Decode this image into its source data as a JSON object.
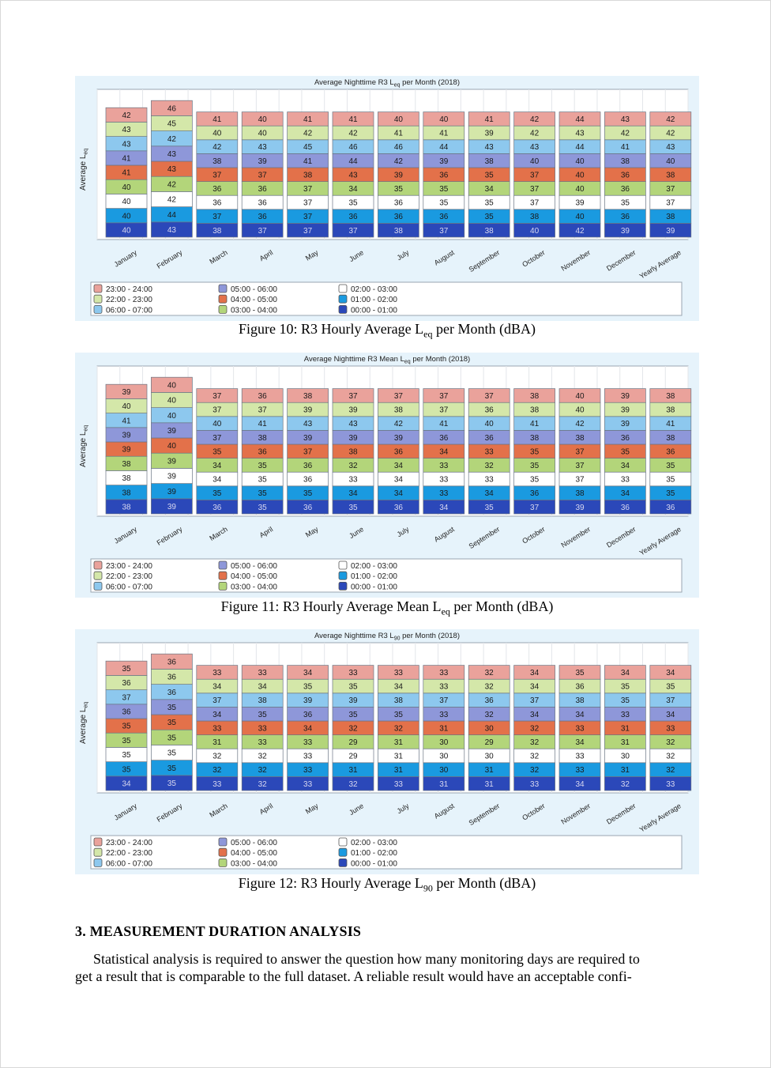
{
  "figures": [
    {
      "caption": {
        "prefix": "Figure 10: R3 Hourly Average L",
        "sub": "eq",
        "suffix": " per Month (dBA)"
      },
      "chart_data": {
        "type": "bar",
        "title": {
          "prefix": "Average Nighttime R3 L",
          "sub": "eq",
          "suffix": " per Month (2018)"
        },
        "ylabel": {
          "prefix": "Average L",
          "sub": "eq"
        },
        "categories": [
          "January",
          "February",
          "March",
          "April",
          "May",
          "June",
          "July",
          "August",
          "September",
          "October",
          "November",
          "December",
          "Yearly Average"
        ],
        "series": [
          {
            "name": "00:00 - 01:00",
            "values": [
              40,
              43,
              38,
              37,
              37,
              37,
              38,
              37,
              38,
              40,
              42,
              39,
              39
            ]
          },
          {
            "name": "01:00 - 02:00",
            "values": [
              40,
              44,
              37,
              36,
              37,
              36,
              36,
              36,
              35,
              38,
              40,
              36,
              38
            ]
          },
          {
            "name": "02:00 - 03:00",
            "values": [
              40,
              42,
              36,
              36,
              37,
              35,
              36,
              35,
              35,
              37,
              39,
              35,
              37
            ]
          },
          {
            "name": "03:00 - 04:00",
            "values": [
              40,
              42,
              36,
              36,
              37,
              34,
              35,
              35,
              34,
              37,
              40,
              36,
              37
            ]
          },
          {
            "name": "04:00 - 05:00",
            "values": [
              41,
              43,
              37,
              37,
              38,
              43,
              39,
              36,
              35,
              37,
              40,
              36,
              38
            ]
          },
          {
            "name": "05:00 - 06:00",
            "values": [
              41,
              43,
              38,
              39,
              41,
              44,
              42,
              39,
              38,
              40,
              40,
              38,
              40
            ]
          },
          {
            "name": "06:00 - 07:00",
            "values": [
              43,
              42,
              42,
              43,
              45,
              46,
              46,
              44,
              43,
              43,
              44,
              41,
              43
            ]
          },
          {
            "name": "22:00 - 23:00",
            "values": [
              43,
              45,
              40,
              40,
              42,
              42,
              41,
              41,
              39,
              42,
              43,
              42,
              42
            ]
          },
          {
            "name": "23:00 - 24:00",
            "values": [
              42,
              46,
              41,
              40,
              41,
              41,
              40,
              40,
              41,
              42,
              44,
              43,
              42
            ]
          }
        ],
        "tallest_index": 1
      }
    },
    {
      "caption": {
        "prefix": "Figure 11: R3 Hourly Average Mean L",
        "sub": "eq",
        "suffix": " per Month (dBA)"
      },
      "chart_data": {
        "type": "bar",
        "title": {
          "prefix": "Average Nighttime R3 Mean L",
          "sub": "eq",
          "suffix": " per Month (2018)"
        },
        "ylabel": {
          "prefix": "Average L",
          "sub": "eq"
        },
        "categories": [
          "January",
          "February",
          "March",
          "April",
          "May",
          "June",
          "July",
          "August",
          "September",
          "October",
          "November",
          "December",
          "Yearly Average"
        ],
        "series": [
          {
            "name": "00:00 - 01:00",
            "values": [
              38,
              39,
              36,
              35,
              36,
              35,
              36,
              34,
              35,
              37,
              39,
              36,
              36
            ]
          },
          {
            "name": "01:00 - 02:00",
            "values": [
              38,
              39,
              35,
              35,
              35,
              34,
              34,
              33,
              34,
              36,
              38,
              34,
              35
            ]
          },
          {
            "name": "02:00 - 03:00",
            "values": [
              38,
              39,
              34,
              35,
              36,
              33,
              34,
              33,
              33,
              35,
              37,
              33,
              35
            ]
          },
          {
            "name": "03:00 - 04:00",
            "values": [
              38,
              39,
              34,
              35,
              36,
              32,
              34,
              33,
              32,
              35,
              37,
              34,
              35
            ]
          },
          {
            "name": "04:00 - 05:00",
            "values": [
              39,
              40,
              35,
              36,
              37,
              38,
              36,
              34,
              33,
              35,
              37,
              35,
              36
            ]
          },
          {
            "name": "05:00 - 06:00",
            "values": [
              39,
              39,
              37,
              38,
              39,
              39,
              39,
              36,
              36,
              38,
              38,
              36,
              38
            ]
          },
          {
            "name": "06:00 - 07:00",
            "values": [
              41,
              40,
              40,
              41,
              43,
              43,
              42,
              41,
              40,
              41,
              42,
              39,
              41
            ]
          },
          {
            "name": "22:00 - 23:00",
            "values": [
              40,
              40,
              37,
              37,
              39,
              39,
              38,
              37,
              36,
              38,
              40,
              39,
              38
            ]
          },
          {
            "name": "23:00 - 24:00",
            "values": [
              39,
              40,
              37,
              36,
              38,
              37,
              37,
              37,
              37,
              38,
              40,
              39,
              38
            ]
          }
        ],
        "tallest_index": 1
      }
    },
    {
      "caption": {
        "prefix": "Figure 12: R3 Hourly Average L",
        "sub": "90",
        "suffix": " per Month (dBA)"
      },
      "chart_data": {
        "type": "bar",
        "title": {
          "prefix": "Average Nighttime R3 L",
          "sub": "90",
          "suffix": " per Month (2018)"
        },
        "ylabel": {
          "prefix": "Average L",
          "sub": "eq"
        },
        "categories": [
          "January",
          "February",
          "March",
          "April",
          "May",
          "June",
          "July",
          "August",
          "September",
          "October",
          "November",
          "December",
          "Yearly Average"
        ],
        "series": [
          {
            "name": "00:00 - 01:00",
            "values": [
              34,
              35,
              33,
              32,
              33,
              32,
              33,
              31,
              31,
              33,
              34,
              32,
              33
            ]
          },
          {
            "name": "01:00 - 02:00",
            "values": [
              35,
              35,
              32,
              32,
              33,
              31,
              31,
              30,
              31,
              32,
              33,
              31,
              32
            ]
          },
          {
            "name": "02:00 - 03:00",
            "values": [
              35,
              35,
              32,
              32,
              33,
              29,
              31,
              30,
              30,
              32,
              33,
              30,
              32
            ]
          },
          {
            "name": "03:00 - 04:00",
            "values": [
              35,
              35,
              31,
              33,
              33,
              29,
              31,
              30,
              29,
              32,
              34,
              31,
              32
            ]
          },
          {
            "name": "04:00 - 05:00",
            "values": [
              35,
              35,
              33,
              33,
              34,
              32,
              32,
              31,
              30,
              32,
              33,
              31,
              33
            ]
          },
          {
            "name": "05:00 - 06:00",
            "values": [
              36,
              35,
              34,
              35,
              36,
              35,
              35,
              33,
              32,
              34,
              34,
              33,
              34
            ]
          },
          {
            "name": "06:00 - 07:00",
            "values": [
              37,
              36,
              37,
              38,
              39,
              39,
              38,
              37,
              36,
              37,
              38,
              35,
              37
            ]
          },
          {
            "name": "22:00 - 23:00",
            "values": [
              36,
              36,
              34,
              34,
              35,
              35,
              34,
              33,
              32,
              34,
              36,
              35,
              35
            ]
          },
          {
            "name": "23:00 - 24:00",
            "values": [
              35,
              36,
              33,
              33,
              34,
              33,
              33,
              33,
              32,
              34,
              35,
              34,
              34
            ]
          }
        ],
        "tallest_index": 1
      }
    }
  ],
  "legend": {
    "col1": [
      "23:00 - 24:00",
      "22:00 - 23:00",
      "06:00 - 07:00"
    ],
    "col2": [
      "05:00 - 06:00",
      "04:00 - 05:00",
      "03:00 - 04:00"
    ],
    "col3": [
      "02:00 - 03:00",
      "01:00 - 02:00",
      "00:00 - 01:00"
    ]
  },
  "colors": {
    "00:00 - 01:00": "#2b48b9",
    "01:00 - 02:00": "#1a9ae0",
    "02:00 - 03:00": "#ffffff",
    "03:00 - 04:00": "#b3d57a",
    "04:00 - 05:00": "#e3714a",
    "05:00 - 06:00": "#8e97d9",
    "06:00 - 07:00": "#8dc8ee",
    "22:00 - 23:00": "#d4e7a9",
    "23:00 - 24:00": "#eaa29b"
  },
  "section": {
    "heading": "3.   MEASUREMENT DURATION ANALYSIS",
    "lines": [
      "Statistical analysis is required to answer the question how many monitoring days are required to",
      "get a result that is comparable to the full dataset. A reliable result would have an acceptable confi-"
    ]
  }
}
